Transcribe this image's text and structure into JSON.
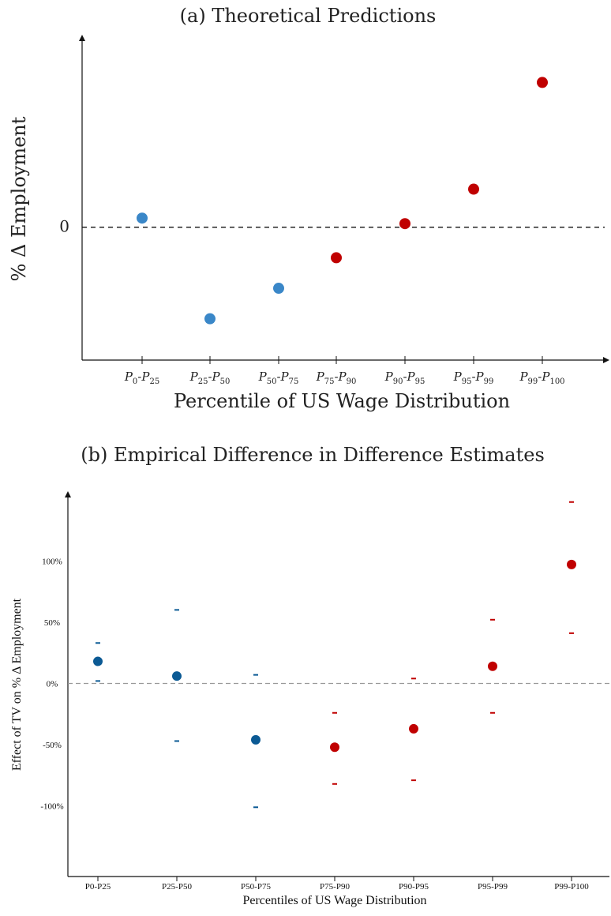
{
  "chart_data": [
    {
      "type": "scatter",
      "title": "(a) Theoretical Predictions",
      "xlabel": "Percentile of US Wage Distribution",
      "ylabel": "% Δ Employment",
      "categories": [
        "P0-P25",
        "P25-P50",
        "P50-P75",
        "P75-P90",
        "P90-P95",
        "P95-P99",
        "P99-P100"
      ],
      "category_labels": [
        {
          "base": "P",
          "sub1": "0",
          "sub2": "25"
        },
        {
          "base": "P",
          "sub1": "25",
          "sub2": "50"
        },
        {
          "base": "P",
          "sub1": "50",
          "sub2": "75"
        },
        {
          "base": "P",
          "sub1": "75",
          "sub2": "90"
        },
        {
          "base": "P",
          "sub1": "90",
          "sub2": "95"
        },
        {
          "base": "P",
          "sub1": "95",
          "sub2": "99"
        },
        {
          "base": "P",
          "sub1": "99",
          "sub2": "100"
        }
      ],
      "values": [
        0.3,
        -3.0,
        -2.0,
        -1.0,
        0.12,
        1.25,
        4.75
      ],
      "point_colors": [
        "#3a87c8",
        "#3a87c8",
        "#3a87c8",
        "#c00000",
        "#c00000",
        "#c00000",
        "#c00000"
      ],
      "y_tick_labels": [
        "0"
      ],
      "reference_line": 0,
      "ylim": [
        -4.2,
        5.9
      ],
      "grid": false
    },
    {
      "type": "scatter",
      "title": "(b) Empirical Difference in Difference Estimates",
      "xlabel": "Percentiles of US Wage Distribution",
      "ylabel": "Effect of TV on % Δ Employment",
      "categories": [
        "P0-P25",
        "P25-P50",
        "P50-P75",
        "P75-P90",
        "P90-P95",
        "P95-P99",
        "P99-P100"
      ],
      "values": [
        18,
        6,
        -46,
        -52,
        -37,
        14,
        97
      ],
      "ci_upper": [
        33,
        60,
        7,
        -24,
        4,
        52,
        148
      ],
      "ci_lower": [
        2,
        -47,
        -101,
        -82,
        -79,
        -24,
        41
      ],
      "point_colors": [
        "#0b5a94",
        "#0b5a94",
        "#0b5a94",
        "#c00000",
        "#c00000",
        "#c00000",
        "#c00000"
      ],
      "y_ticks": [
        100,
        50,
        0,
        -50,
        -100
      ],
      "y_tick_labels": [
        "100%",
        "50%",
        "0%",
        "-50%",
        "-100%"
      ],
      "reference_line": 0,
      "ylim": [
        -153,
        153
      ],
      "grid": false
    }
  ]
}
